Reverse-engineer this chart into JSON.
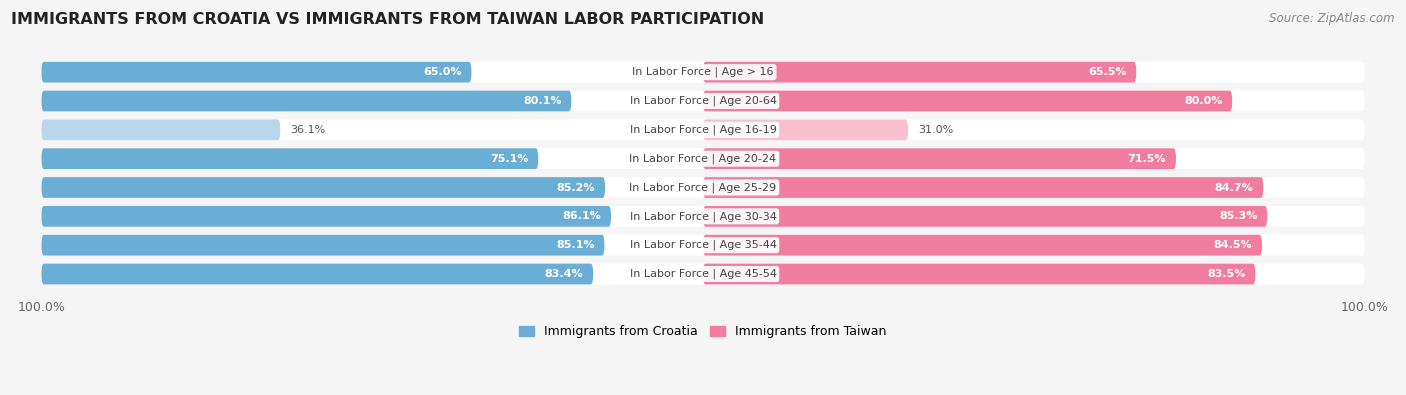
{
  "title": "IMMIGRANTS FROM CROATIA VS IMMIGRANTS FROM TAIWAN LABOR PARTICIPATION",
  "source": "Source: ZipAtlas.com",
  "categories": [
    "In Labor Force | Age > 16",
    "In Labor Force | Age 20-64",
    "In Labor Force | Age 16-19",
    "In Labor Force | Age 20-24",
    "In Labor Force | Age 25-29",
    "In Labor Force | Age 30-34",
    "In Labor Force | Age 35-44",
    "In Labor Force | Age 45-54"
  ],
  "croatia_values": [
    65.0,
    80.1,
    36.1,
    75.1,
    85.2,
    86.1,
    85.1,
    83.4
  ],
  "taiwan_values": [
    65.5,
    80.0,
    31.0,
    71.5,
    84.7,
    85.3,
    84.5,
    83.5
  ],
  "croatia_color": "#6aaed6",
  "taiwan_color": "#f07ca0",
  "croatia_color_light": "#bad6ea",
  "taiwan_color_light": "#f9c0d0",
  "row_bg_color": "#e8e8ec",
  "row_bg_color2": "#f0f0f4",
  "bg_color": "#f5f5f5",
  "title_fontsize": 11.5,
  "source_fontsize": 8.5,
  "label_fontsize": 8,
  "value_fontsize": 8,
  "legend_fontsize": 9,
  "max_value": 100.0,
  "legend_croatia": "Immigrants from Croatia",
  "legend_taiwan": "Immigrants from Taiwan"
}
